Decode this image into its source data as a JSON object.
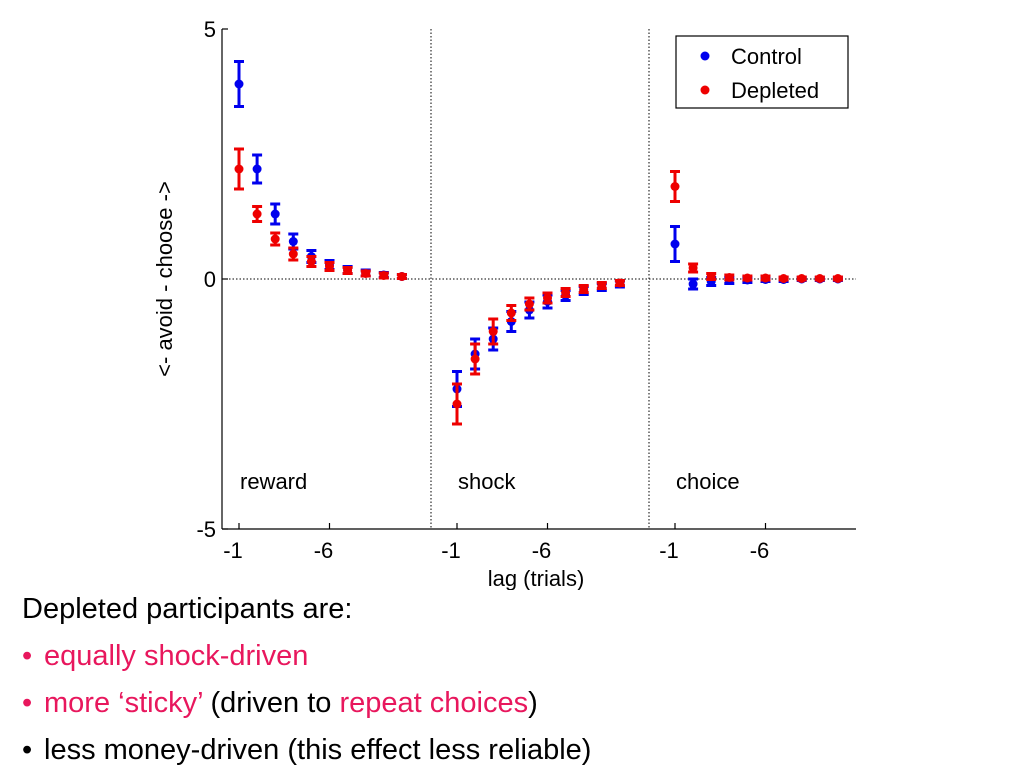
{
  "chart_data": {
    "type": "scatter",
    "ylabel": "<- avoid  - choose ->",
    "xlabel": "lag (trials)",
    "ylim": [
      -5,
      5
    ],
    "y_ticks": [
      "5",
      "0",
      "-5"
    ],
    "x_tick_labels": [
      "-1",
      "-6",
      "-1",
      "-6",
      "-1",
      "-6"
    ],
    "legend_position": "top-right",
    "grid": false,
    "panels": [
      {
        "name": "reward",
        "lags": [
          -1,
          -2,
          -3,
          -4,
          -5,
          -6,
          -7,
          -8,
          -9,
          -10
        ]
      },
      {
        "name": "shock",
        "lags": [
          -1,
          -2,
          -3,
          -4,
          -5,
          -6,
          -7,
          -8,
          -9,
          -10
        ]
      },
      {
        "name": "choice",
        "lags": [
          -1,
          -2,
          -3,
          -4,
          -5,
          -6,
          -7,
          -8,
          -9,
          -10
        ]
      }
    ],
    "series": [
      {
        "name": "Control",
        "color": "#0000ee",
        "values": {
          "reward": [
            3.9,
            2.2,
            1.3,
            0.75,
            0.45,
            0.28,
            0.18,
            0.12,
            0.08,
            0.05
          ],
          "shock": [
            -2.2,
            -1.5,
            -1.2,
            -0.85,
            -0.62,
            -0.45,
            -0.33,
            -0.23,
            -0.16,
            -0.1
          ],
          "choice": [
            0.7,
            -0.1,
            -0.05,
            -0.03,
            -0.02,
            -0.01,
            -0.01,
            0,
            0,
            0
          ]
        },
        "errors": {
          "reward": [
            0.45,
            0.28,
            0.2,
            0.15,
            0.12,
            0.09,
            0.07,
            0.06,
            0.05,
            0.04
          ],
          "shock": [
            0.35,
            0.3,
            0.22,
            0.2,
            0.16,
            0.13,
            0.1,
            0.08,
            0.07,
            0.06
          ],
          "choice": [
            0.35,
            0.1,
            0.08,
            0.06,
            0.05,
            0.04,
            0.04,
            0.03,
            0.03,
            0.03
          ]
        }
      },
      {
        "name": "Depleted",
        "color": "#ee0000",
        "values": {
          "reward": [
            2.2,
            1.3,
            0.8,
            0.5,
            0.35,
            0.25,
            0.17,
            0.11,
            0.07,
            0.05
          ],
          "shock": [
            -2.5,
            -1.6,
            -1.05,
            -0.68,
            -0.5,
            -0.38,
            -0.27,
            -0.2,
            -0.13,
            -0.08
          ],
          "choice": [
            1.85,
            0.22,
            0.05,
            0.03,
            0.02,
            0.02,
            0.01,
            0.01,
            0.01,
            0.01
          ]
        },
        "errors": {
          "reward": [
            0.4,
            0.15,
            0.12,
            0.12,
            0.1,
            0.08,
            0.06,
            0.05,
            0.05,
            0.04
          ],
          "shock": [
            0.4,
            0.3,
            0.25,
            0.15,
            0.12,
            0.1,
            0.08,
            0.07,
            0.06,
            0.05
          ],
          "choice": [
            0.3,
            0.08,
            0.06,
            0.05,
            0.04,
            0.04,
            0.03,
            0.03,
            0.03,
            0.03
          ]
        }
      }
    ]
  },
  "caption": {
    "heading": "Depleted participants are:",
    "bullet_symbol": "•",
    "bullets": [
      {
        "pink": "equally shock-driven"
      },
      {
        "pink": "more ‘sticky’",
        "plain1": " (driven to ",
        "pink2": "repeat choices",
        "plain2": ")"
      },
      {
        "plain1": "less money-driven (this effect less reliable)"
      }
    ]
  }
}
